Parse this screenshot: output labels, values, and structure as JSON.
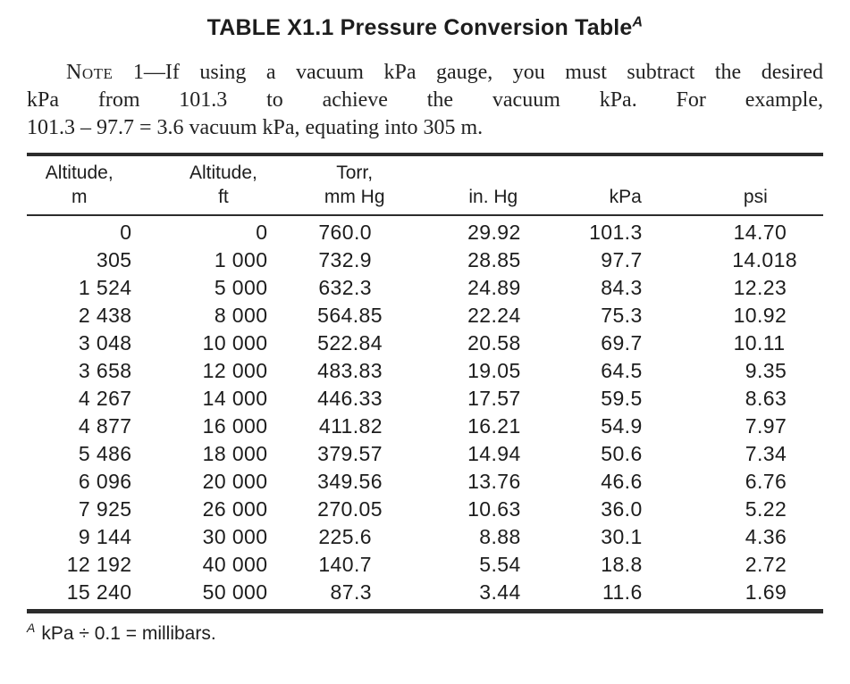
{
  "page": {
    "title": {
      "text": "TABLE X1.1 Pressure Conversion Table",
      "footnote_ref": "A"
    },
    "note": {
      "label": "Note",
      "line1_rest": " 1—If using a vacuum kPa gauge, you must subtract the desired",
      "line2": "kPa from 101.3 to achieve the vacuum kPa. For example,",
      "line3": "101.3 – 97.7 = 3.6 vacuum kPa, equating into 305 m."
    },
    "table": {
      "columns": [
        {
          "line1": "Altitude,",
          "line2": "m"
        },
        {
          "line1": "Altitude,",
          "line2": "ft"
        },
        {
          "line1": "Torr,",
          "line2": "mm Hg"
        },
        {
          "line1": "",
          "line2": "in. Hg"
        },
        {
          "line1": "",
          "line2": "kPa"
        },
        {
          "line1": "",
          "line2": "psi"
        }
      ],
      "rows": [
        [
          "0",
          "0",
          "760.0",
          "29.92",
          "101.3",
          "14.70"
        ],
        [
          "305",
          "1 000",
          "732.9",
          "28.85",
          "97.7",
          "14.018"
        ],
        [
          "1 524",
          "5 000",
          "632.3",
          "24.89",
          "84.3",
          "12.23"
        ],
        [
          "2 438",
          "8 000",
          "564.85",
          "22.24",
          "75.3",
          "10.92"
        ],
        [
          "3 048",
          "10 000",
          "522.84",
          "20.58",
          "69.7",
          "10.11"
        ],
        [
          "3 658",
          "12 000",
          "483.83",
          "19.05",
          "64.5",
          "9.35"
        ],
        [
          "4 267",
          "14 000",
          "446.33",
          "17.57",
          "59.5",
          "8.63"
        ],
        [
          "4 877",
          "16 000",
          "411.82",
          "16.21",
          "54.9",
          "7.97"
        ],
        [
          "5 486",
          "18 000",
          "379.57",
          "14.94",
          "50.6",
          "7.34"
        ],
        [
          "6 096",
          "20 000",
          "349.56",
          "13.76",
          "46.6",
          "6.76"
        ],
        [
          "7 925",
          "26 000",
          "270.05",
          "10.63",
          "36.0",
          "5.22"
        ],
        [
          "9 144",
          "30 000",
          "225.6",
          "8.88",
          "30.1",
          "4.36"
        ],
        [
          "12 192",
          "40 000",
          "140.7",
          "5.54",
          "18.8",
          "2.72"
        ],
        [
          "15 240",
          "50 000",
          "87.3",
          "3.44",
          "11.6",
          "1.69"
        ]
      ]
    },
    "footnote": {
      "ref": "A",
      "text": "kPa ÷ 0.1 = millibars."
    },
    "colors": {
      "text": "#1d1d1d",
      "rule": "#2c2c2c"
    }
  }
}
